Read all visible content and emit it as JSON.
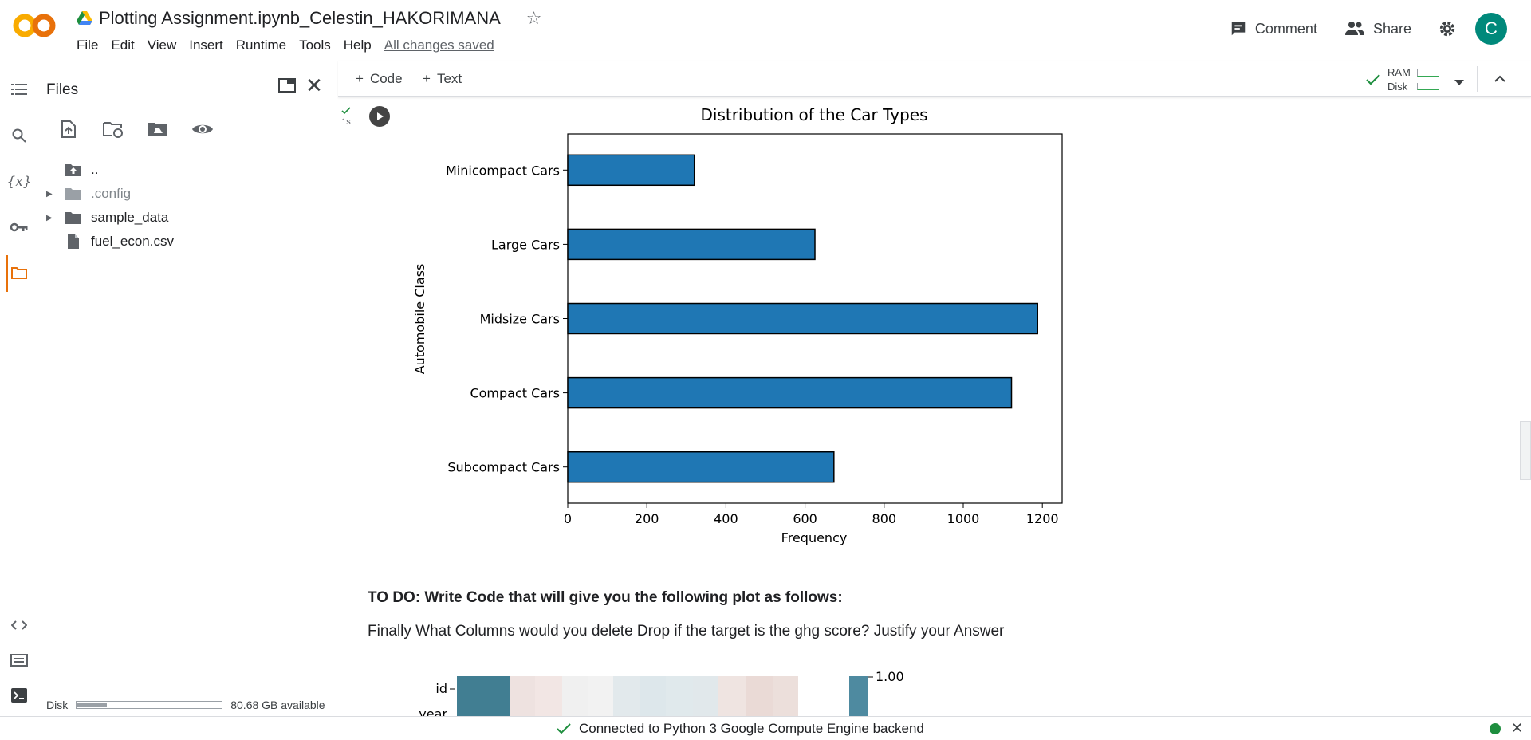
{
  "header": {
    "notebook_title": "Plotting Assignment.ipynb_Celestin_HAKORIMANA",
    "menu": [
      "File",
      "Edit",
      "View",
      "Insert",
      "Runtime",
      "Tools",
      "Help"
    ],
    "save_status": "All changes saved",
    "comment_label": "Comment",
    "share_label": "Share",
    "avatar_letter": "C",
    "avatar_color": "#00897b",
    "brand_color": "#f9ab00"
  },
  "files_panel": {
    "title": "Files",
    "tree": [
      {
        "name": "..",
        "kind": "up",
        "expandable": false
      },
      {
        "name": ".config",
        "kind": "folder",
        "expandable": true,
        "muted": true
      },
      {
        "name": "sample_data",
        "kind": "folder",
        "expandable": true,
        "muted": false
      },
      {
        "name": "fuel_econ.csv",
        "kind": "file",
        "expandable": false,
        "muted": false
      }
    ],
    "disk_label": "Disk",
    "disk_available": "80.68 GB available",
    "disk_used_fraction": 0.2
  },
  "toolbar": {
    "add_code": "Code",
    "add_text": "Text",
    "ram_label": "RAM",
    "disk_label": "Disk"
  },
  "cell": {
    "exec_time": "1s"
  },
  "chart_data": {
    "type": "bar",
    "orientation": "horizontal",
    "title": "Distribution of the Car Types",
    "xlabel": "Frequency",
    "ylabel": "Automobile Class",
    "categories": [
      "Minicompact Cars",
      "Large Cars",
      "Midsize Cars",
      "Compact Cars",
      "Subcompact Cars"
    ],
    "values": [
      320,
      625,
      1188,
      1122,
      673
    ],
    "xlim": [
      0,
      1250
    ],
    "xticks": [
      0,
      200,
      400,
      600,
      800,
      1000,
      1200
    ],
    "bar_color": "#1f77b4",
    "edge_color": "#000000"
  },
  "markdown": {
    "todo": "TO DO: Write Code that will give you the following plot as follows:",
    "question": "Finally What Columns would you delete Drop if the target is the ghg score? Justify your Answer"
  },
  "heatmap_preview": {
    "row_labels": [
      "id",
      "year"
    ],
    "colorbar_max": "1.00"
  },
  "status_bar": {
    "text": "Connected to Python 3 Google Compute Engine backend"
  }
}
